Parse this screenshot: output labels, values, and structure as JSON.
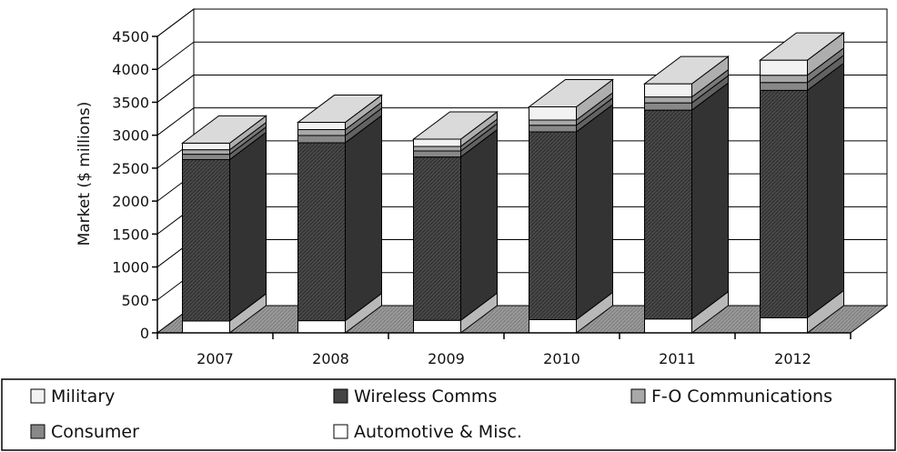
{
  "chart_data": {
    "type": "bar",
    "stacked": true,
    "three_d": true,
    "categories": [
      "2007",
      "2008",
      "2009",
      "2010",
      "2011",
      "2012"
    ],
    "ylabel": "Market ($ millions)",
    "xlabel": "",
    "title": "",
    "ylim": [
      0,
      4500
    ],
    "yticks": [
      "0",
      "500",
      "1000",
      "1500",
      "2000",
      "2500",
      "3000",
      "3500",
      "4000",
      "4500"
    ],
    "grid": true,
    "legend_position": "bottom",
    "legend_order": [
      "Military",
      "Wireless Comms",
      "F-O Communications",
      "Consumer",
      "Automotive & Misc."
    ],
    "series": [
      {
        "name": "Automotive & Misc.",
        "values": [
          180,
          185,
          190,
          200,
          210,
          230
        ],
        "color": "#ffffff"
      },
      {
        "name": "Wireless Comms",
        "values": [
          2450,
          2700,
          2480,
          2850,
          3170,
          3450
        ],
        "color": "#555555"
      },
      {
        "name": "Consumer",
        "values": [
          80,
          110,
          90,
          100,
          110,
          120
        ],
        "color": "#888888"
      },
      {
        "name": "F-O Communications",
        "values": [
          70,
          90,
          70,
          80,
          90,
          110
        ],
        "color": "#a8a8a8"
      },
      {
        "name": "Military",
        "values": [
          100,
          110,
          110,
          200,
          200,
          230
        ],
        "color": "#f2f2f2"
      }
    ]
  }
}
